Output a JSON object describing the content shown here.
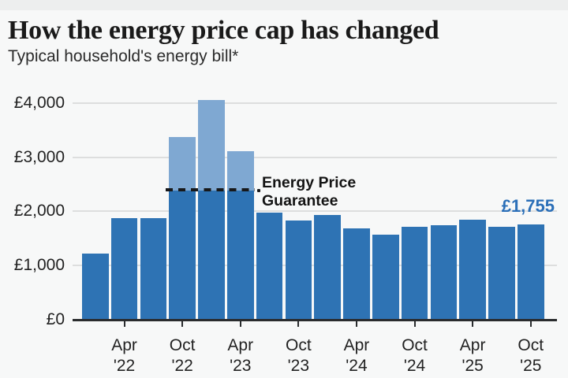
{
  "chart_data": {
    "type": "bar",
    "title": "How the energy price cap has changed",
    "subtitle": "Typical household's energy bill*",
    "currency": "GBP",
    "unit": "pounds per year, typical household",
    "ylim": [
      0,
      4200
    ],
    "grid": true,
    "yticks": [
      {
        "value": 0,
        "label": "£0"
      },
      {
        "value": 1000,
        "label": "£1,000"
      },
      {
        "value": 2000,
        "label": "£2,000"
      },
      {
        "value": 3000,
        "label": "£3,000"
      },
      {
        "value": 4000,
        "label": "£4,000"
      }
    ],
    "bars": [
      {
        "period": "Jan '22",
        "value": 1216
      },
      {
        "period": "Apr '22",
        "value": 1880,
        "axis_label": "Apr '22"
      },
      {
        "period": "Jul '22",
        "value": 1880
      },
      {
        "period": "Oct '22",
        "value": 2380,
        "uncapped_value": 3372,
        "capped_by_guarantee": true,
        "axis_label": "Oct '22"
      },
      {
        "period": "Jan '23",
        "value": 2380,
        "uncapped_value": 4059,
        "capped_by_guarantee": true
      },
      {
        "period": "Apr '23",
        "value": 2380,
        "uncapped_value": 3116,
        "capped_by_guarantee": true,
        "axis_label": "Apr '23"
      },
      {
        "period": "Jul '23",
        "value": 1976
      },
      {
        "period": "Oct '23",
        "value": 1834,
        "axis_label": "Oct '23"
      },
      {
        "period": "Jan '24",
        "value": 1928
      },
      {
        "period": "Apr '24",
        "value": 1690,
        "axis_label": "Apr '24"
      },
      {
        "period": "Jul '24",
        "value": 1568
      },
      {
        "period": "Oct '24",
        "value": 1717,
        "axis_label": "Oct '24"
      },
      {
        "period": "Jan '25",
        "value": 1738
      },
      {
        "period": "Apr '25",
        "value": 1849,
        "axis_label": "Apr '25"
      },
      {
        "period": "Jul '25",
        "value": 1720
      },
      {
        "period": "Oct '25",
        "value": 1755,
        "axis_label": "Oct '25"
      }
    ],
    "guarantee": {
      "label": "Energy Price Guarantee",
      "value": 2380
    },
    "latest_value_label": "£1,755",
    "legend_position": "none",
    "colors": {
      "bar": "#2E73B4",
      "bar_uncapped": "#7FA8D2",
      "latest_label": "#2B6FB8",
      "annotation": "#141414"
    }
  }
}
